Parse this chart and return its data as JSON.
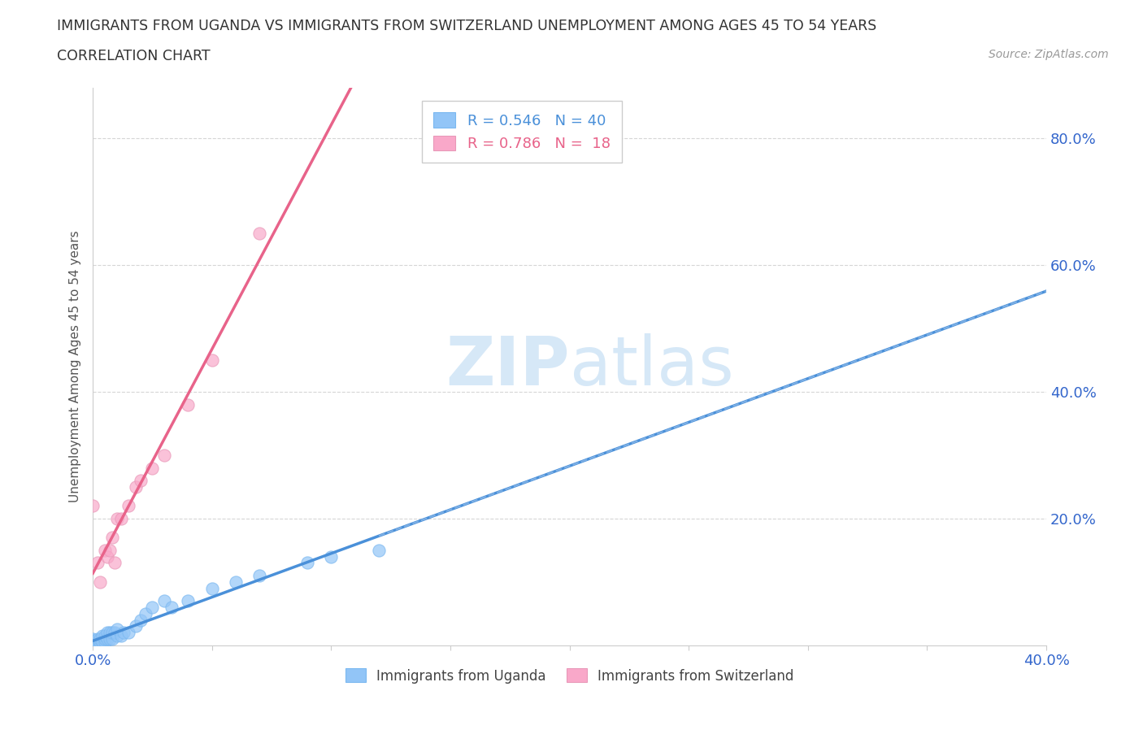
{
  "title_line1": "IMMIGRANTS FROM UGANDA VS IMMIGRANTS FROM SWITZERLAND UNEMPLOYMENT AMONG AGES 45 TO 54 YEARS",
  "title_line2": "CORRELATION CHART",
  "source_text": "Source: ZipAtlas.com",
  "ylabel": "Unemployment Among Ages 45 to 54 years",
  "xlim": [
    0.0,
    0.4
  ],
  "ylim": [
    0.0,
    0.88
  ],
  "xtick_values": [
    0.0,
    0.05,
    0.1,
    0.15,
    0.2,
    0.25,
    0.3,
    0.35,
    0.4
  ],
  "xtick_label_positions": [
    0.0,
    0.4
  ],
  "xtick_label_texts": [
    "0.0%",
    "40.0%"
  ],
  "ytick_values": [
    0.2,
    0.4,
    0.6,
    0.8
  ],
  "ytick_labels": [
    "20.0%",
    "40.0%",
    "60.0%",
    "80.0%"
  ],
  "uganda_R": 0.546,
  "uganda_N": 40,
  "swiss_R": 0.786,
  "swiss_N": 18,
  "uganda_color": "#92C5F7",
  "swiss_color": "#F9A8C9",
  "uganda_line_color": "#4A90D9",
  "swiss_line_color": "#E8638A",
  "watermark_color": "#D6E8F7",
  "uganda_x": [
    0.0,
    0.0,
    0.0,
    0.0,
    0.0,
    0.0,
    0.002,
    0.002,
    0.003,
    0.003,
    0.004,
    0.004,
    0.005,
    0.005,
    0.005,
    0.006,
    0.006,
    0.007,
    0.007,
    0.008,
    0.008,
    0.009,
    0.01,
    0.01,
    0.012,
    0.013,
    0.015,
    0.018,
    0.02,
    0.022,
    0.025,
    0.03,
    0.033,
    0.04,
    0.05,
    0.06,
    0.07,
    0.09,
    0.1,
    0.12
  ],
  "uganda_y": [
    0.0,
    0.0,
    0.005,
    0.005,
    0.008,
    0.01,
    0.005,
    0.01,
    0.005,
    0.01,
    0.005,
    0.015,
    0.005,
    0.01,
    0.015,
    0.01,
    0.02,
    0.01,
    0.02,
    0.01,
    0.02,
    0.02,
    0.015,
    0.025,
    0.015,
    0.02,
    0.02,
    0.03,
    0.04,
    0.05,
    0.06,
    0.07,
    0.06,
    0.07,
    0.09,
    0.1,
    0.11,
    0.13,
    0.14,
    0.15
  ],
  "swiss_x": [
    0.0,
    0.002,
    0.003,
    0.005,
    0.006,
    0.007,
    0.008,
    0.009,
    0.01,
    0.012,
    0.015,
    0.018,
    0.02,
    0.025,
    0.03,
    0.04,
    0.05,
    0.07
  ],
  "swiss_y": [
    0.22,
    0.13,
    0.1,
    0.15,
    0.14,
    0.15,
    0.17,
    0.13,
    0.2,
    0.2,
    0.22,
    0.25,
    0.26,
    0.28,
    0.3,
    0.38,
    0.45,
    0.65
  ]
}
